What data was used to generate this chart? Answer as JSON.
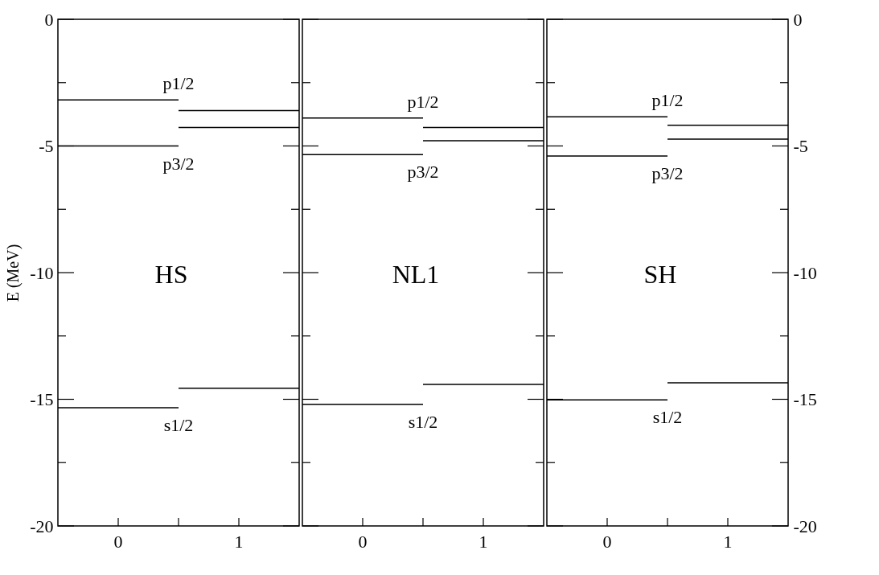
{
  "chart_data": [
    {
      "type": "line",
      "title": "HS",
      "ylabel": "E (MeV)",
      "xlim": [
        -0.5,
        1.5
      ],
      "xticks": [
        {
          "value": 0,
          "label": "0"
        },
        {
          "value": 0.5,
          "label": null
        },
        {
          "value": 1,
          "label": "1"
        }
      ],
      "ylim": [
        -20,
        0
      ],
      "yticks": [
        -20,
        {
          "value": -17.5,
          "label": null
        },
        -15,
        {
          "value": -12.5,
          "label": null
        },
        -10,
        {
          "value": -7.5,
          "label": null
        },
        -5,
        {
          "value": -2.5,
          "label": null
        },
        0
      ],
      "legend": false,
      "grid": false,
      "marker": "none",
      "series": [
        {
          "name": "p1/2",
          "x": [
            -0.5,
            0.5
          ],
          "values": [
            -3.18,
            -3.18
          ],
          "color": "#000000"
        },
        {
          "name": "p3/2",
          "x": [
            -0.5,
            0.5
          ],
          "values": [
            -5.0,
            -5.0
          ],
          "color": "#000000"
        },
        {
          "name": "s1/2",
          "x": [
            -0.5,
            0.5
          ],
          "values": [
            -15.33,
            -15.33
          ],
          "color": "#000000"
        },
        {
          "x": [
            0.5,
            1.5
          ],
          "values": [
            -3.6,
            -3.6
          ],
          "color": "#000000"
        },
        {
          "x": [
            0.5,
            1.5
          ],
          "values": [
            -4.27,
            -4.27
          ],
          "color": "#000000"
        },
        {
          "x": [
            0.5,
            1.5
          ],
          "values": [
            -14.56,
            -14.56
          ],
          "color": "#000000"
        }
      ]
    },
    {
      "type": "line",
      "title": "NL1",
      "xlim": [
        -0.5,
        1.5
      ],
      "xticks": [
        {
          "value": 0,
          "label": "0"
        },
        {
          "value": 0.5,
          "label": null
        },
        {
          "value": 1,
          "label": "1"
        }
      ],
      "ylim": [
        -20,
        0
      ],
      "yticks": [
        -20,
        {
          "value": -17.5,
          "label": null
        },
        -15,
        {
          "value": -12.5,
          "label": null
        },
        -10,
        {
          "value": -7.5,
          "label": null
        },
        -5,
        {
          "value": -2.5,
          "label": null
        },
        0
      ],
      "tick_labels": "x",
      "legend": false,
      "grid": false,
      "marker": "none",
      "series": [
        {
          "name": "p1/2",
          "x": [
            -0.5,
            0.5
          ],
          "values": [
            -3.9,
            -3.9
          ],
          "color": "#000000"
        },
        {
          "name": "p3/2",
          "x": [
            -0.5,
            0.5
          ],
          "values": [
            -5.34,
            -5.34
          ],
          "color": "#000000"
        },
        {
          "name": "s1/2",
          "x": [
            -0.5,
            0.5
          ],
          "values": [
            -15.2,
            -15.2
          ],
          "color": "#000000"
        },
        {
          "x": [
            0.5,
            1.5
          ],
          "values": [
            -4.27,
            -4.27
          ],
          "color": "#000000"
        },
        {
          "x": [
            0.5,
            1.5
          ],
          "values": [
            -4.79,
            -4.79
          ],
          "color": "#000000"
        },
        {
          "x": [
            0.5,
            1.5
          ],
          "values": [
            -14.41,
            -14.41
          ],
          "color": "#000000"
        }
      ]
    },
    {
      "type": "line",
      "title": "SH",
      "xlim": [
        -0.5,
        1.5
      ],
      "xticks": [
        {
          "value": 0,
          "label": "0"
        },
        {
          "value": 0.5,
          "label": null
        },
        {
          "value": 1,
          "label": "1"
        }
      ],
      "y2lim": [
        -20,
        0
      ],
      "y2ticks": [
        -20,
        {
          "value": -17.5,
          "label": null
        },
        -15,
        {
          "value": -12.5,
          "label": null
        },
        -10,
        {
          "value": -7.5,
          "label": null
        },
        -5,
        {
          "value": -2.5,
          "label": null
        },
        0
      ],
      "legend": false,
      "grid": false,
      "marker": "none",
      "series": [
        {
          "name": "p1/2",
          "x": [
            -0.5,
            0.5
          ],
          "values": [
            -3.85,
            -3.85
          ],
          "color": "#000000",
          "axis": "y2"
        },
        {
          "name": "p3/2",
          "x": [
            -0.5,
            0.5
          ],
          "values": [
            -5.4,
            -5.4
          ],
          "color": "#000000",
          "axis": "y2"
        },
        {
          "name": "s1/2",
          "x": [
            -0.5,
            0.5
          ],
          "values": [
            -15.02,
            -15.02
          ],
          "color": "#000000",
          "axis": "y2"
        },
        {
          "x": [
            0.5,
            1.5
          ],
          "values": [
            -4.18,
            -4.18
          ],
          "color": "#000000",
          "axis": "y2"
        },
        {
          "x": [
            0.5,
            1.5
          ],
          "values": [
            -4.73,
            -4.73
          ],
          "color": "#000000",
          "axis": "y2"
        },
        {
          "x": [
            0.5,
            1.5
          ],
          "values": [
            -14.35,
            -14.35
          ],
          "color": "#000000",
          "axis": "y2"
        }
      ]
    }
  ]
}
